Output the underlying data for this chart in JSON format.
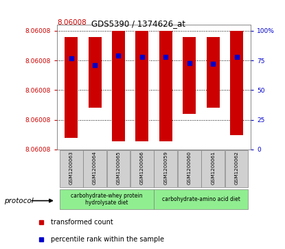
{
  "title": "GDS5390 / 1374626_at",
  "title_prefix": "8.06008",
  "samples": [
    "GSM1200063",
    "GSM1200064",
    "GSM1200065",
    "GSM1200066",
    "GSM1200059",
    "GSM1200060",
    "GSM1200061",
    "GSM1200062"
  ],
  "bar_tops": [
    0.95,
    0.95,
    1.0,
    1.0,
    1.0,
    0.95,
    0.95,
    1.0
  ],
  "bar_bottoms": [
    0.1,
    0.35,
    0.07,
    0.07,
    0.07,
    0.3,
    0.35,
    0.12
  ],
  "bar_color": "#cc0000",
  "percentile_ranks": [
    0.77,
    0.71,
    0.79,
    0.78,
    0.78,
    0.73,
    0.72,
    0.78
  ],
  "percentile_color": "#0000cc",
  "ylim_min": 0.0,
  "ylim_max": 1.05,
  "ytick_positions": [
    0.0,
    0.25,
    0.5,
    0.75,
    1.0
  ],
  "ytick_labels": [
    "8.06008",
    "8.06008",
    "8.06008",
    "8.06008",
    "8.06008"
  ],
  "right_ytick_positions": [
    0.0,
    0.25,
    0.5,
    0.75,
    1.0
  ],
  "right_ytick_labels": [
    "0",
    "25",
    "50",
    "75",
    "100%"
  ],
  "protocol_groups": [
    {
      "label": "carbohydrate-whey protein\nhydrolysate diet",
      "start": 0,
      "end": 4,
      "color": "#90ee90"
    },
    {
      "label": "carbohydrate-amino acid diet",
      "start": 4,
      "end": 8,
      "color": "#90ee90"
    }
  ],
  "protocol_label": "protocol",
  "legend_items": [
    {
      "label": "transformed count",
      "color": "#cc0000"
    },
    {
      "label": "percentile rank within the sample",
      "color": "#0000cc"
    }
  ],
  "bar_width": 0.55,
  "tick_label_color_left": "#cc0000",
  "tick_label_color_right": "#0000cc"
}
